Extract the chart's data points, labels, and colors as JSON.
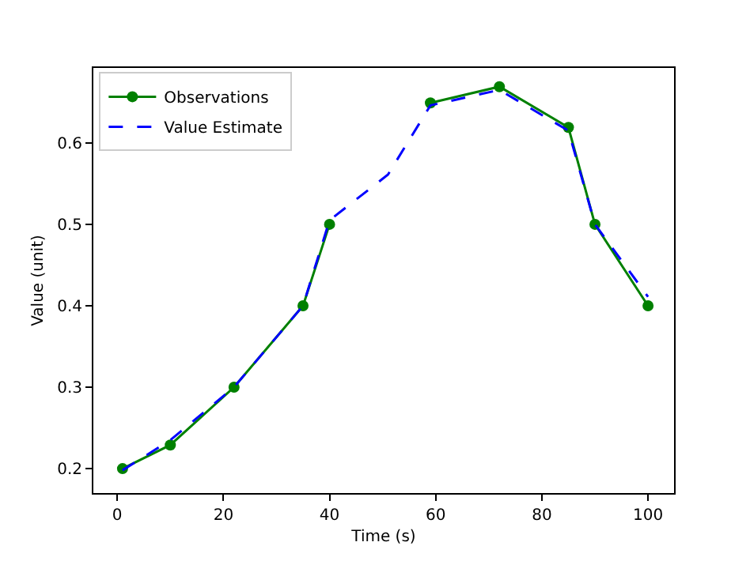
{
  "chart_data": {
    "type": "line",
    "xlabel": "Time (s)",
    "ylabel": "Value (unit)",
    "xlim": [
      -4.5,
      104.9
    ],
    "ylim": [
      0.17,
      0.692
    ],
    "xticks": [
      0,
      20,
      40,
      60,
      80,
      100
    ],
    "yticks": [
      0.2,
      0.3,
      0.4,
      0.5,
      0.6
    ],
    "legend": "top left",
    "series": [
      {
        "name": "Observations",
        "color": "#008000",
        "marker": "circle",
        "line_style": "solid",
        "x": [
          1,
          10,
          22,
          35,
          40,
          51,
          59,
          72,
          85,
          90,
          100
        ],
        "values": [
          0.2,
          0.229,
          0.3,
          0.4,
          0.5,
          null,
          0.649,
          0.669,
          0.619,
          0.5,
          0.4
        ]
      },
      {
        "name": "Value Estimate",
        "color": "#0000ff",
        "marker": "none",
        "line_style": "dashed",
        "x": [
          1,
          10,
          22,
          35,
          40,
          51,
          59,
          72,
          85,
          90,
          100
        ],
        "values": [
          0.198,
          0.235,
          0.3,
          0.4,
          0.505,
          0.561,
          0.646,
          0.665,
          0.615,
          0.5,
          0.411
        ]
      }
    ]
  }
}
